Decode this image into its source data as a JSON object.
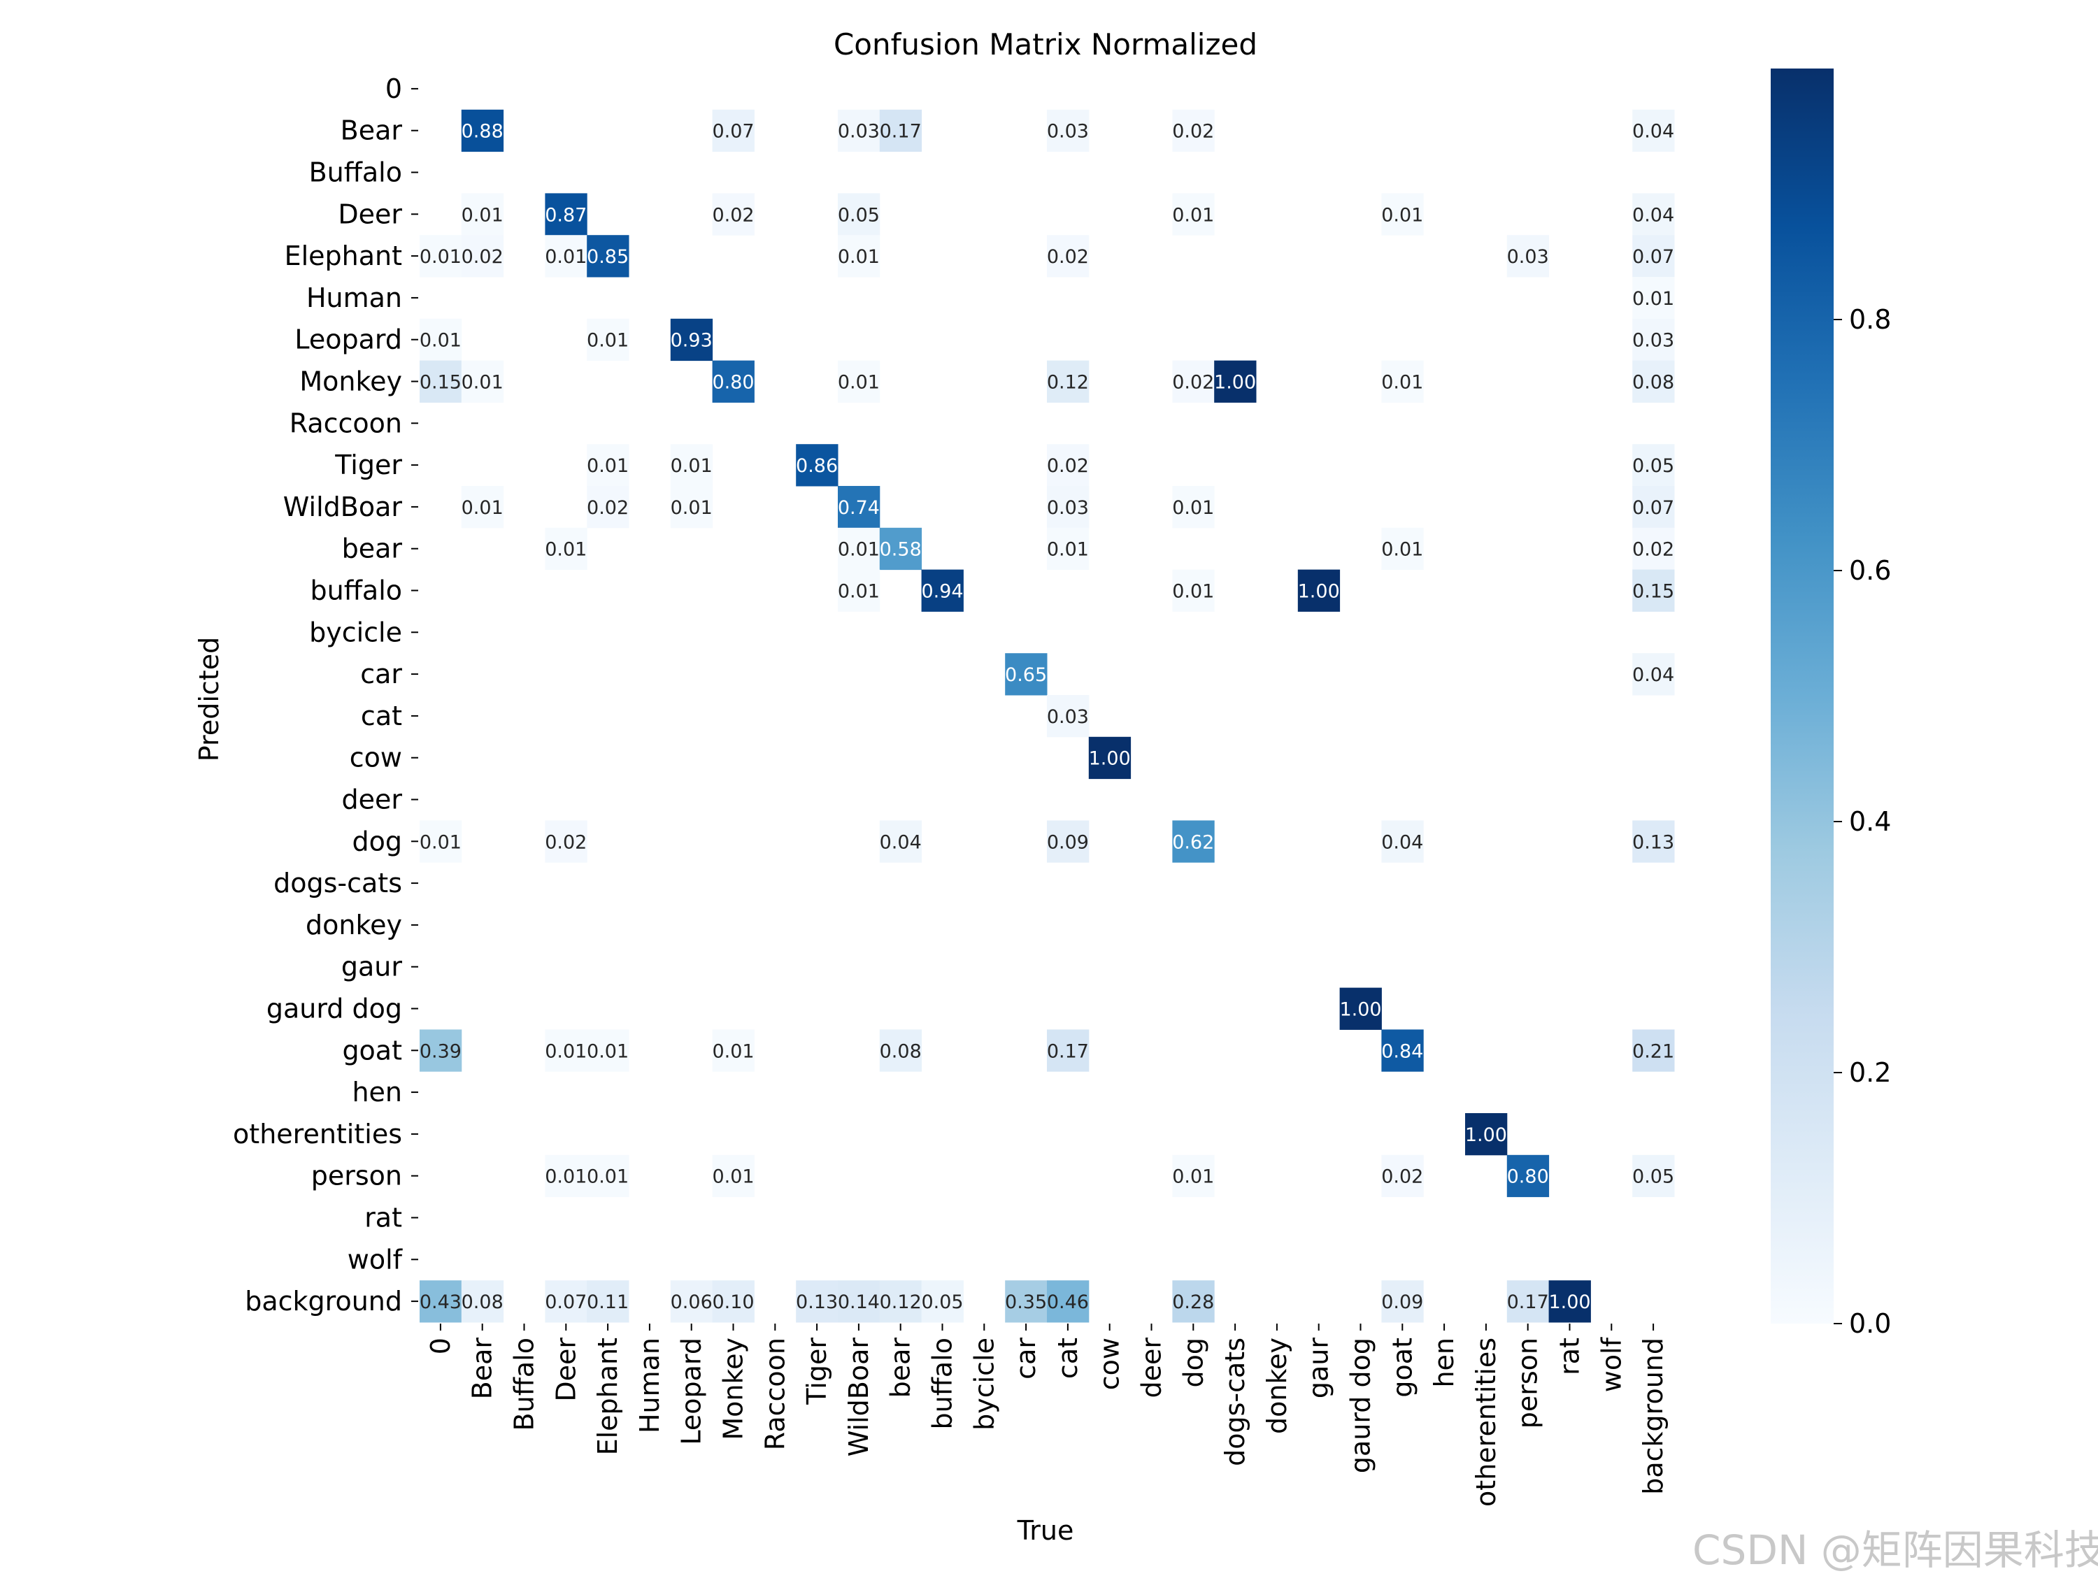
{
  "chart_data": {
    "type": "heatmap",
    "title": "Confusion Matrix Normalized",
    "xlabel": "True",
    "ylabel": "Predicted",
    "labels": [
      "0",
      "Bear",
      "Buffalo",
      "Deer",
      "Elephant",
      "Human",
      "Leopard",
      "Monkey",
      "Raccoon",
      "Tiger",
      "WildBoar",
      "bear",
      "buffalo",
      "bycicle",
      "car",
      "cat",
      "cow",
      "deer",
      "dog",
      "dogs-cats",
      "donkey",
      "gaur",
      "gaurd dog",
      "goat",
      "hen",
      "otherentities",
      "person",
      "rat",
      "wolf",
      "background"
    ],
    "cells": [
      {
        "row": "Bear",
        "col": "Bear",
        "value": 0.88
      },
      {
        "row": "Bear",
        "col": "Monkey",
        "value": 0.07
      },
      {
        "row": "Bear",
        "col": "WildBoar",
        "value": 0.03
      },
      {
        "row": "Bear",
        "col": "bear",
        "value": 0.17
      },
      {
        "row": "Bear",
        "col": "cat",
        "value": 0.03
      },
      {
        "row": "Bear",
        "col": "dog",
        "value": 0.02
      },
      {
        "row": "Bear",
        "col": "background",
        "value": 0.04
      },
      {
        "row": "Deer",
        "col": "Bear",
        "value": 0.01
      },
      {
        "row": "Deer",
        "col": "Deer",
        "value": 0.87
      },
      {
        "row": "Deer",
        "col": "Monkey",
        "value": 0.02
      },
      {
        "row": "Deer",
        "col": "WildBoar",
        "value": 0.05
      },
      {
        "row": "Deer",
        "col": "dog",
        "value": 0.01
      },
      {
        "row": "Deer",
        "col": "goat",
        "value": 0.01
      },
      {
        "row": "Deer",
        "col": "background",
        "value": 0.04
      },
      {
        "row": "Elephant",
        "col": "0",
        "value": 0.01
      },
      {
        "row": "Elephant",
        "col": "Bear",
        "value": 0.02
      },
      {
        "row": "Elephant",
        "col": "Deer",
        "value": 0.01
      },
      {
        "row": "Elephant",
        "col": "Elephant",
        "value": 0.85
      },
      {
        "row": "Elephant",
        "col": "WildBoar",
        "value": 0.01
      },
      {
        "row": "Elephant",
        "col": "cat",
        "value": 0.02
      },
      {
        "row": "Elephant",
        "col": "person",
        "value": 0.03
      },
      {
        "row": "Elephant",
        "col": "background",
        "value": 0.07
      },
      {
        "row": "Human",
        "col": "background",
        "value": 0.01
      },
      {
        "row": "Leopard",
        "col": "0",
        "value": 0.01
      },
      {
        "row": "Leopard",
        "col": "Elephant",
        "value": 0.01
      },
      {
        "row": "Leopard",
        "col": "Leopard",
        "value": 0.93
      },
      {
        "row": "Leopard",
        "col": "background",
        "value": 0.03
      },
      {
        "row": "Monkey",
        "col": "0",
        "value": 0.15
      },
      {
        "row": "Monkey",
        "col": "Bear",
        "value": 0.01
      },
      {
        "row": "Monkey",
        "col": "Monkey",
        "value": 0.8
      },
      {
        "row": "Monkey",
        "col": "WildBoar",
        "value": 0.01
      },
      {
        "row": "Monkey",
        "col": "cat",
        "value": 0.12
      },
      {
        "row": "Monkey",
        "col": "dog",
        "value": 0.02
      },
      {
        "row": "Monkey",
        "col": "dogs-cats",
        "value": 1.0
      },
      {
        "row": "Monkey",
        "col": "goat",
        "value": 0.01
      },
      {
        "row": "Monkey",
        "col": "background",
        "value": 0.08
      },
      {
        "row": "Tiger",
        "col": "Elephant",
        "value": 0.01
      },
      {
        "row": "Tiger",
        "col": "Leopard",
        "value": 0.01
      },
      {
        "row": "Tiger",
        "col": "Tiger",
        "value": 0.86
      },
      {
        "row": "Tiger",
        "col": "cat",
        "value": 0.02
      },
      {
        "row": "Tiger",
        "col": "background",
        "value": 0.05
      },
      {
        "row": "WildBoar",
        "col": "Bear",
        "value": 0.01
      },
      {
        "row": "WildBoar",
        "col": "Elephant",
        "value": 0.02
      },
      {
        "row": "WildBoar",
        "col": "Leopard",
        "value": 0.01
      },
      {
        "row": "WildBoar",
        "col": "WildBoar",
        "value": 0.74
      },
      {
        "row": "WildBoar",
        "col": "cat",
        "value": 0.03
      },
      {
        "row": "WildBoar",
        "col": "dog",
        "value": 0.01
      },
      {
        "row": "WildBoar",
        "col": "background",
        "value": 0.07
      },
      {
        "row": "bear",
        "col": "Deer",
        "value": 0.01
      },
      {
        "row": "bear",
        "col": "WildBoar",
        "value": 0.01
      },
      {
        "row": "bear",
        "col": "bear",
        "value": 0.58
      },
      {
        "row": "bear",
        "col": "cat",
        "value": 0.01
      },
      {
        "row": "bear",
        "col": "goat",
        "value": 0.01
      },
      {
        "row": "bear",
        "col": "background",
        "value": 0.02
      },
      {
        "row": "buffalo",
        "col": "WildBoar",
        "value": 0.01
      },
      {
        "row": "buffalo",
        "col": "buffalo",
        "value": 0.94
      },
      {
        "row": "buffalo",
        "col": "dog",
        "value": 0.01
      },
      {
        "row": "buffalo",
        "col": "gaur",
        "value": 1.0
      },
      {
        "row": "buffalo",
        "col": "background",
        "value": 0.15
      },
      {
        "row": "car",
        "col": "car",
        "value": 0.65
      },
      {
        "row": "car",
        "col": "background",
        "value": 0.04
      },
      {
        "row": "cat",
        "col": "cat",
        "value": 0.03
      },
      {
        "row": "cow",
        "col": "cow",
        "value": 1.0
      },
      {
        "row": "dog",
        "col": "0",
        "value": 0.01
      },
      {
        "row": "dog",
        "col": "Deer",
        "value": 0.02
      },
      {
        "row": "dog",
        "col": "bear",
        "value": 0.04
      },
      {
        "row": "dog",
        "col": "cat",
        "value": 0.09
      },
      {
        "row": "dog",
        "col": "dog",
        "value": 0.62
      },
      {
        "row": "dog",
        "col": "goat",
        "value": 0.04
      },
      {
        "row": "dog",
        "col": "background",
        "value": 0.13
      },
      {
        "row": "gaurd dog",
        "col": "gaurd dog",
        "value": 1.0
      },
      {
        "row": "goat",
        "col": "0",
        "value": 0.39
      },
      {
        "row": "goat",
        "col": "Deer",
        "value": 0.01
      },
      {
        "row": "goat",
        "col": "Elephant",
        "value": 0.01
      },
      {
        "row": "goat",
        "col": "Monkey",
        "value": 0.01
      },
      {
        "row": "goat",
        "col": "bear",
        "value": 0.08
      },
      {
        "row": "goat",
        "col": "cat",
        "value": 0.17
      },
      {
        "row": "goat",
        "col": "goat",
        "value": 0.84
      },
      {
        "row": "goat",
        "col": "background",
        "value": 0.21
      },
      {
        "row": "otherentities",
        "col": "otherentities",
        "value": 1.0
      },
      {
        "row": "person",
        "col": "Deer",
        "value": 0.01
      },
      {
        "row": "person",
        "col": "Elephant",
        "value": 0.01
      },
      {
        "row": "person",
        "col": "Monkey",
        "value": 0.01
      },
      {
        "row": "person",
        "col": "dog",
        "value": 0.01
      },
      {
        "row": "person",
        "col": "goat",
        "value": 0.02
      },
      {
        "row": "person",
        "col": "person",
        "value": 0.8
      },
      {
        "row": "person",
        "col": "background",
        "value": 0.05
      },
      {
        "row": "background",
        "col": "0",
        "value": 0.43
      },
      {
        "row": "background",
        "col": "Bear",
        "value": 0.08
      },
      {
        "row": "background",
        "col": "Deer",
        "value": 0.07
      },
      {
        "row": "background",
        "col": "Elephant",
        "value": 0.11
      },
      {
        "row": "background",
        "col": "Leopard",
        "value": 0.06
      },
      {
        "row": "background",
        "col": "Monkey",
        "value": 0.1
      },
      {
        "row": "background",
        "col": "Tiger",
        "value": 0.13
      },
      {
        "row": "background",
        "col": "WildBoar",
        "value": 0.14
      },
      {
        "row": "background",
        "col": "bear",
        "value": 0.12
      },
      {
        "row": "background",
        "col": "buffalo",
        "value": 0.05
      },
      {
        "row": "background",
        "col": "car",
        "value": 0.35
      },
      {
        "row": "background",
        "col": "cat",
        "value": 0.46
      },
      {
        "row": "background",
        "col": "dog",
        "value": 0.28
      },
      {
        "row": "background",
        "col": "goat",
        "value": 0.09
      },
      {
        "row": "background",
        "col": "person",
        "value": 0.17
      },
      {
        "row": "background",
        "col": "rat",
        "value": 1.0
      }
    ],
    "colorbar": {
      "colormap": "Blues",
      "range": [
        0,
        1
      ],
      "ticks": [
        "0.0",
        "0.2",
        "0.4",
        "0.6",
        "0.8"
      ]
    },
    "grid": false
  },
  "watermark": "CSDN @矩阵因果科技"
}
